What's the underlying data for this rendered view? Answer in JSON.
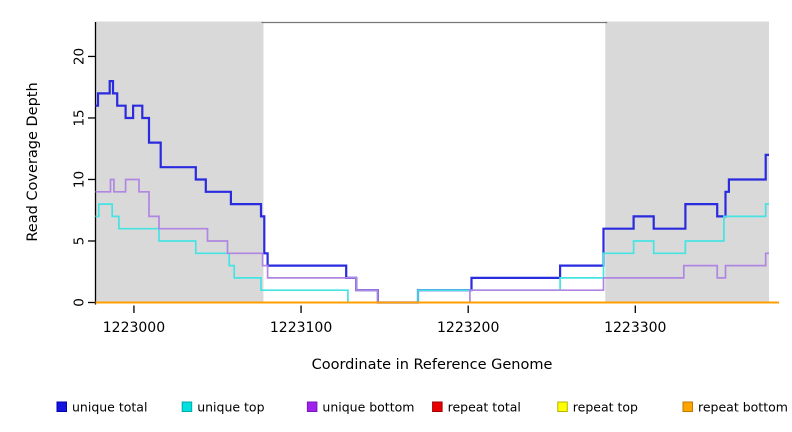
{
  "chart_data": {
    "type": "line",
    "subtype": "step-coverage-plot",
    "xlabel": "Coordinate in Reference Genome",
    "ylabel": "Read Coverage Depth",
    "xlim": [
      1222977,
      1223380
    ],
    "ylim": [
      0,
      22.8
    ],
    "x_ticks": [
      1223000,
      1223100,
      1223200,
      1223300
    ],
    "x_tick_labels": [
      "1223000",
      "1223100",
      "1223200",
      "1223300"
    ],
    "y_ticks": [
      0,
      5,
      10,
      15,
      20
    ],
    "y_tick_labels": [
      "0",
      "5",
      "10",
      "15",
      "20"
    ],
    "grid": false,
    "legend_position": "bottom",
    "shaded_band_color": "#d9d9d9",
    "top_border_color": "#777777",
    "shaded_regions": [
      {
        "from": 1222977,
        "to": 1223077.5
      },
      {
        "from": 1223282,
        "to": 1223380
      }
    ],
    "series": [
      {
        "name": "unique total",
        "color": "#2a2ade",
        "width": 2.2,
        "steps": [
          [
            1222977,
            16
          ],
          [
            1222978.5,
            17
          ],
          [
            1222985.5,
            18
          ],
          [
            1222987.5,
            17
          ],
          [
            1222990,
            16
          ],
          [
            1222995,
            15
          ],
          [
            1222999.5,
            16
          ],
          [
            1223005,
            15
          ],
          [
            1223009,
            13
          ],
          [
            1223016,
            11
          ],
          [
            1223037,
            10
          ],
          [
            1223043,
            9
          ],
          [
            1223058,
            8
          ],
          [
            1223076,
            7
          ],
          [
            1223078,
            4
          ],
          [
            1223080,
            3
          ],
          [
            1223127,
            2
          ],
          [
            1223133,
            1
          ],
          [
            1223146,
            0
          ],
          [
            1223170,
            1
          ],
          [
            1223202,
            2
          ],
          [
            1223255,
            3
          ],
          [
            1223281,
            6
          ],
          [
            1223299,
            7
          ],
          [
            1223311,
            6
          ],
          [
            1223330,
            8
          ],
          [
            1223349,
            7
          ],
          [
            1223354,
            9
          ],
          [
            1223356,
            10
          ],
          [
            1223378,
            12
          ]
        ]
      },
      {
        "name": "unique top",
        "color": "#46e3e3",
        "width": 1.7,
        "steps": [
          [
            1222977,
            7
          ],
          [
            1222979,
            8
          ],
          [
            1222987,
            7
          ],
          [
            1222991,
            6
          ],
          [
            1223015,
            5
          ],
          [
            1223037,
            4
          ],
          [
            1223057,
            3
          ],
          [
            1223060,
            2
          ],
          [
            1223076,
            1
          ],
          [
            1223128,
            0
          ],
          [
            1223170,
            1
          ],
          [
            1223255,
            2
          ],
          [
            1223281,
            4
          ],
          [
            1223299,
            5
          ],
          [
            1223311,
            4
          ],
          [
            1223330,
            5
          ],
          [
            1223353,
            7
          ],
          [
            1223378,
            8
          ]
        ]
      },
      {
        "name": "unique bottom",
        "color": "#b086e2",
        "width": 1.7,
        "steps": [
          [
            1222977,
            9
          ],
          [
            1222986,
            10
          ],
          [
            1222988,
            9
          ],
          [
            1222995,
            10
          ],
          [
            1223003,
            9
          ],
          [
            1223009,
            7
          ],
          [
            1223015,
            6
          ],
          [
            1223044,
            5
          ],
          [
            1223056,
            4
          ],
          [
            1223077,
            3
          ],
          [
            1223080,
            2
          ],
          [
            1223133,
            1
          ],
          [
            1223146,
            0
          ],
          [
            1223201,
            1
          ],
          [
            1223281,
            2
          ],
          [
            1223329,
            3
          ],
          [
            1223349,
            2
          ],
          [
            1223354,
            3
          ],
          [
            1223378,
            4
          ]
        ]
      },
      {
        "name": "repeat total",
        "color": "#dd0000",
        "width": 1.7,
        "steps": [
          [
            1222977,
            0
          ]
        ]
      },
      {
        "name": "repeat top",
        "color": "#ffff00",
        "width": 1.7,
        "steps": [
          [
            1222977,
            0
          ]
        ]
      },
      {
        "name": "repeat bottom",
        "color": "#ff9e00",
        "width": 2.0,
        "x_end": 1223386,
        "steps": [
          [
            1222977,
            0
          ]
        ]
      }
    ]
  },
  "legend": {
    "items": [
      {
        "label": "unique total",
        "fill": "#1414e0",
        "border": "#0000b0"
      },
      {
        "label": "unique top",
        "fill": "#00e0e0",
        "border": "#00a8a8"
      },
      {
        "label": "unique bottom",
        "fill": "#a020f0",
        "border": "#7718b8"
      },
      {
        "label": "repeat total",
        "fill": "#e80000",
        "border": "#a00000"
      },
      {
        "label": "repeat top",
        "fill": "#ffff00",
        "border": "#b4b400"
      },
      {
        "label": "repeat bottom",
        "fill": "#ffa500",
        "border": "#c07800"
      }
    ]
  }
}
